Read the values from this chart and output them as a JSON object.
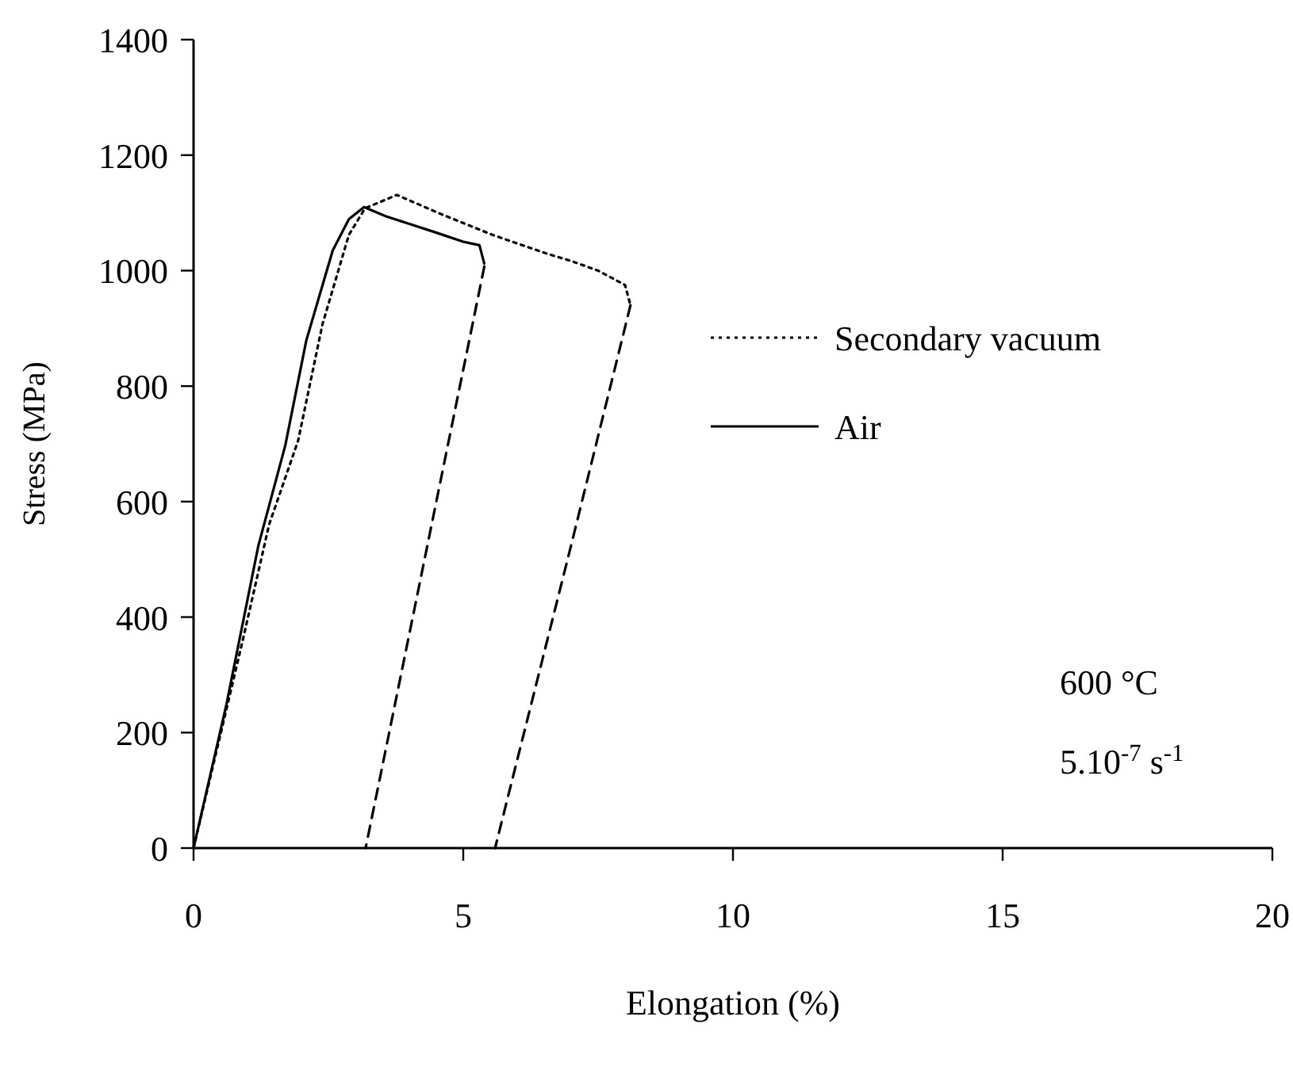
{
  "chart_data": {
    "type": "line",
    "xlabel": "Elongation (%)",
    "ylabel": "Stress (MPa)",
    "xlim": [
      0,
      20
    ],
    "xticks": [
      0,
      5,
      10,
      15,
      20
    ],
    "ylim": [
      0,
      1400
    ],
    "yticks": [
      0,
      200,
      400,
      600,
      800,
      1000,
      1200,
      1400
    ],
    "grid": false,
    "legend": "right",
    "marker": "none",
    "series": [
      {
        "name": "Secondary vacuum",
        "color": "#000000",
        "line_style": "dotted",
        "x": [
          0,
          0.91,
          1.4,
          1.94,
          2.39,
          2.88,
          3.18,
          3.77,
          4.56,
          5.54,
          6.53,
          7.02,
          7.5,
          8.0,
          8.1
        ],
        "values": [
          0,
          359,
          560,
          706,
          907,
          1062,
          1108,
          1131,
          1099,
          1062,
          1030,
          1016,
          1000,
          975,
          940
        ]
      },
      {
        "name": "Air",
        "color": "#000000",
        "line_style": "solid",
        "x": [
          0,
          0.61,
          1.2,
          1.7,
          2.09,
          2.58,
          2.88,
          3.16,
          3.57,
          4.46,
          5.0,
          5.3,
          5.39
        ],
        "values": [
          0,
          249,
          523,
          697,
          879,
          1035,
          1089,
          1110,
          1094,
          1067,
          1050,
          1044,
          1012
        ]
      },
      {
        "color": "#000000",
        "line_style": "dashed",
        "x": [
          5.39,
          3.19
        ],
        "values": [
          1007,
          0
        ]
      },
      {
        "color": "#000000",
        "line_style": "dashed",
        "x": [
          8.1,
          7.02,
          5.59
        ],
        "values": [
          940,
          532,
          0
        ]
      }
    ],
    "annotations": [
      "600 °C",
      "5.10$^{-7}$ s$^{-1}$"
    ]
  }
}
